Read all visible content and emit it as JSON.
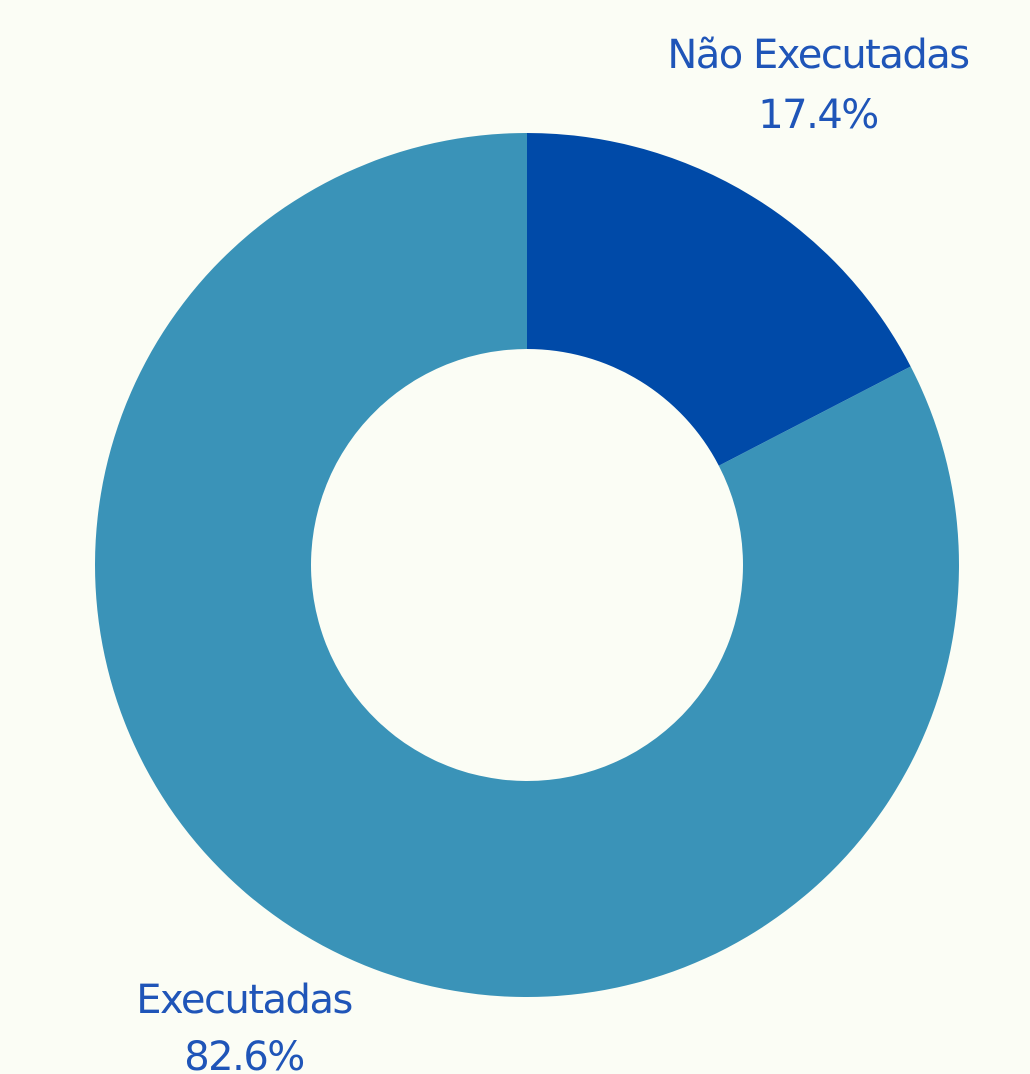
{
  "chart_data": {
    "type": "pie",
    "title": "",
    "donut": true,
    "categories": [
      "Não Executadas",
      "Executadas"
    ],
    "values": [
      17.4,
      82.6
    ],
    "value_labels": [
      "17.4%",
      "82.6%"
    ],
    "colors": [
      "#004aa8",
      "#3a93b8"
    ],
    "label_color": "#1f55b8",
    "legend": "none"
  }
}
